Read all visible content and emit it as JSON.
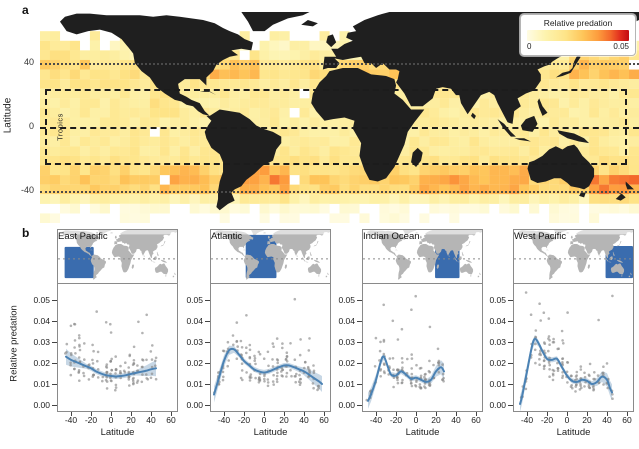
{
  "figure_labels": {
    "panel_a": "a",
    "panel_b": "b"
  },
  "map_panel": {
    "y_axis_label": "Latitude",
    "y_tick_labels": [
      "40",
      "0",
      "-40"
    ],
    "tropics_label": "Tropics",
    "legend": {
      "title": "Relative predation",
      "min_label": "0",
      "max_label": "0.05"
    }
  },
  "panel_b": {
    "y_axis_label": "Relative predation",
    "x_axis_label": "Latitude",
    "y_tick_labels": [
      "0.00",
      "0.01",
      "0.02",
      "0.03",
      "0.04",
      "0.05"
    ],
    "x_tick_labels": [
      "-40",
      "-20",
      "0",
      "20",
      "40",
      "60"
    ]
  },
  "colors": {
    "heat_low": "#fffce4",
    "heat_mid": "#fec559",
    "heat_high": "#df2a1d",
    "heat_max": "#c30c12",
    "land_dark": "#1f1f1f",
    "mini_land": "#b5b5b5",
    "region_blue": "#3a6cae",
    "trend_line": "#4b82b4",
    "ci_band": "#8fb0cc",
    "scatter_dot": "#8a8a8a"
  },
  "chart_data": [
    {
      "type": "heatmap",
      "title": "Relative predation",
      "colormap": "YlOrRd",
      "value_range": [
        0,
        0.05
      ],
      "lon_range": [
        -180,
        180
      ],
      "lat_range": [
        -60,
        60
      ],
      "cell_size_deg": 6,
      "grid_seed": 42,
      "latitude_profile": [
        {
          "lat": 57,
          "mean": 0.012
        },
        {
          "lat": 51,
          "mean": 0.008
        },
        {
          "lat": 45,
          "mean": 0.011
        },
        {
          "lat": 39,
          "mean": 0.017
        },
        {
          "lat": 33,
          "mean": 0.019
        },
        {
          "lat": 27,
          "mean": 0.016
        },
        {
          "lat": 21,
          "mean": 0.014
        },
        {
          "lat": 15,
          "mean": 0.013
        },
        {
          "lat": 9,
          "mean": 0.013
        },
        {
          "lat": 3,
          "mean": 0.013
        },
        {
          "lat": -3,
          "mean": 0.014
        },
        {
          "lat": -9,
          "mean": 0.014
        },
        {
          "lat": -15,
          "mean": 0.015
        },
        {
          "lat": -21,
          "mean": 0.017
        },
        {
          "lat": -27,
          "mean": 0.021
        },
        {
          "lat": -33,
          "mean": 0.025
        },
        {
          "lat": -39,
          "mean": 0.023
        },
        {
          "lat": -45,
          "mean": 0.01
        },
        {
          "lat": -51,
          "mean": 0.004
        },
        {
          "lat": -57,
          "mean": 0.002
        }
      ],
      "hotspots": [
        {
          "lon": [
            140,
            180
          ],
          "lat": [
            28,
            48
          ],
          "boost": 0.01
        },
        {
          "lon": [
            -180,
            -150
          ],
          "lat": [
            34,
            52
          ],
          "boost": 0.007
        },
        {
          "lon": [
            -75,
            -50
          ],
          "lat": [
            33,
            45
          ],
          "boost": 0.009
        },
        {
          "lon": [
            0,
            36
          ],
          "lat": [
            31,
            44
          ],
          "boost": 0.007
        },
        {
          "lon": [
            148,
            180
          ],
          "lat": [
            -45,
            -28
          ],
          "boost": 0.013
        },
        {
          "lon": [
            -60,
            -30
          ],
          "lat": [
            -45,
            -25
          ],
          "boost": 0.009
        },
        {
          "lon": [
            50,
            115
          ],
          "lat": [
            -42,
            -26
          ],
          "boost": 0.007
        },
        {
          "lon": [
            -115,
            -95
          ],
          "lat": [
            8,
            24
          ],
          "boost": 0.007
        },
        {
          "lon": [
            -85,
            -70
          ],
          "lat": [
            -18,
            0
          ],
          "boost": 0.005
        },
        {
          "lon": [
            -110,
            -80
          ],
          "lat": [
            -40,
            -25
          ],
          "boost": 0.008
        }
      ],
      "tropics_band": [
        -23.5,
        23.5
      ],
      "reference_latitudes": [
        40,
        0,
        -40
      ]
    },
    {
      "type": "scatter",
      "title": "East Pacific",
      "xlabel": "Latitude",
      "ylabel": "Relative predation",
      "xlim": [
        -54,
        67
      ],
      "ylim": [
        0,
        0.058
      ],
      "x_ticks": [
        -40,
        -20,
        0,
        20,
        40,
        60
      ],
      "y_ticks": [
        0,
        0.01,
        0.02,
        0.03,
        0.04,
        0.05
      ],
      "region_lonlat": {
        "lon": [
          -160,
          -72
        ],
        "lat": [
          30,
          -48
        ]
      },
      "line": {
        "x": [
          -45,
          -40,
          -35,
          -30,
          -25,
          -20,
          -15,
          -10,
          -5,
          0,
          5,
          10,
          15,
          20,
          25,
          30,
          35,
          40,
          45
        ],
        "y": [
          0.023,
          0.0215,
          0.0205,
          0.0195,
          0.0185,
          0.0175,
          0.016,
          0.015,
          0.0142,
          0.0138,
          0.0136,
          0.0138,
          0.0142,
          0.0148,
          0.0153,
          0.0158,
          0.0163,
          0.017,
          0.0175
        ]
      },
      "scatter": {
        "n": 150,
        "seed": 7,
        "outlier_rate": 0.06
      }
    },
    {
      "type": "scatter",
      "title": "Atlantic",
      "xlabel": "Latitude",
      "ylabel": "Relative predation",
      "xlim": [
        -54,
        67
      ],
      "ylim": [
        0,
        0.058
      ],
      "x_ticks": [
        -40,
        -20,
        0,
        20,
        40,
        60
      ],
      "y_ticks": [
        0,
        0.01,
        0.02,
        0.03,
        0.04,
        0.05
      ],
      "region_lonlat": {
        "lon": [
          -75,
          18
        ],
        "lat": [
          60,
          -48
        ]
      },
      "line": {
        "x": [
          -50,
          -45,
          -40,
          -35,
          -30,
          -25,
          -20,
          -15,
          -10,
          -5,
          0,
          5,
          10,
          15,
          20,
          25,
          30,
          35,
          40,
          45,
          50,
          55,
          58
        ],
        "y": [
          0.005,
          0.013,
          0.021,
          0.026,
          0.0265,
          0.024,
          0.021,
          0.019,
          0.017,
          0.016,
          0.0155,
          0.016,
          0.017,
          0.018,
          0.0188,
          0.0188,
          0.018,
          0.017,
          0.016,
          0.0145,
          0.0128,
          0.0112,
          0.01
        ]
      },
      "scatter": {
        "n": 160,
        "seed": 13,
        "outlier_rate": 0.09
      }
    },
    {
      "type": "scatter",
      "title": "Indian Ocean",
      "xlabel": "Latitude",
      "ylabel": "Relative predation",
      "xlim": [
        -54,
        67
      ],
      "ylim": [
        0,
        0.058
      ],
      "x_ticks": [
        -40,
        -20,
        0,
        20,
        40,
        60
      ],
      "y_ticks": [
        0,
        0.01,
        0.02,
        0.03,
        0.04,
        0.05
      ],
      "region_lonlat": {
        "lon": [
          38,
          112
        ],
        "lat": [
          26,
          -48
        ]
      },
      "line": {
        "x": [
          -48,
          -45,
          -40,
          -35,
          -32,
          -28,
          -25,
          -20,
          -15,
          -10,
          -5,
          0,
          5,
          10,
          15,
          20,
          25,
          28
        ],
        "y": [
          0.002,
          0.005,
          0.012,
          0.021,
          0.023,
          0.018,
          0.0145,
          0.014,
          0.016,
          0.0145,
          0.0125,
          0.013,
          0.012,
          0.011,
          0.012,
          0.016,
          0.018,
          0.016
        ]
      },
      "scatter": {
        "n": 135,
        "seed": 21,
        "outlier_rate": 0.1
      }
    },
    {
      "type": "scatter",
      "title": "West Pacific",
      "xlabel": "Latitude",
      "ylabel": "Relative predation",
      "xlim": [
        -54,
        67
      ],
      "ylim": [
        0,
        0.058
      ],
      "x_ticks": [
        -40,
        -20,
        0,
        20,
        40,
        60
      ],
      "y_ticks": [
        0,
        0.01,
        0.02,
        0.03,
        0.04,
        0.05
      ],
      "region_lonlat": {
        "lon": [
          97,
          180
        ],
        "lat": [
          32,
          -48
        ]
      },
      "line": {
        "x": [
          -47,
          -45,
          -40,
          -35,
          -32,
          -28,
          -25,
          -20,
          -15,
          -10,
          -5,
          0,
          5,
          10,
          15,
          20,
          25,
          30,
          35,
          40,
          43,
          45
        ],
        "y": [
          0.0005,
          0.004,
          0.016,
          0.028,
          0.0315,
          0.029,
          0.026,
          0.022,
          0.0215,
          0.022,
          0.018,
          0.014,
          0.0115,
          0.011,
          0.012,
          0.0115,
          0.01,
          0.011,
          0.0135,
          0.012,
          0.008,
          0.006
        ]
      },
      "scatter": {
        "n": 150,
        "seed": 29,
        "outlier_rate": 0.08
      }
    }
  ]
}
